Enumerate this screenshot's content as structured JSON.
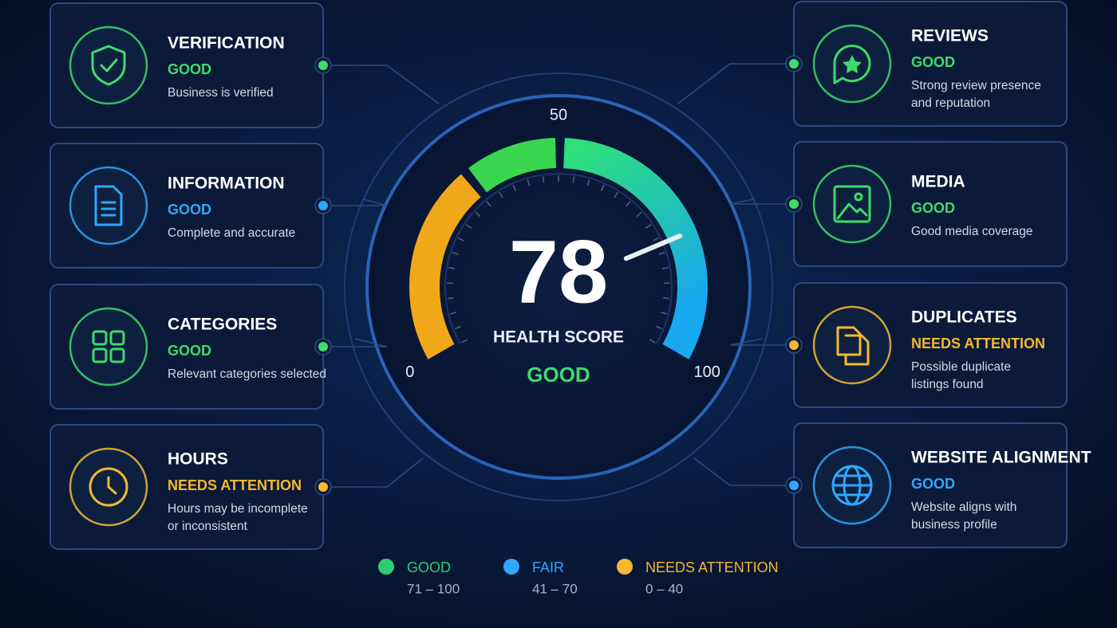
{
  "left_cards": [
    {
      "title": "VERIFICATION",
      "status": "GOOD",
      "color": "#3ddc6b",
      "description": [
        "Business is verified"
      ]
    },
    {
      "title": "INFORMATION",
      "status": "GOOD",
      "color": "#2ea8ff",
      "description": [
        "Complete and accurate"
      ]
    },
    {
      "title": "CATEGORIES",
      "status": "GOOD",
      "color": "#3ddc6b",
      "description": [
        "Relevant categories selected"
      ]
    },
    {
      "title": "HOURS",
      "status": "NEEDS ATTENTION",
      "color": "#f5b82e",
      "description": [
        "Hours may be incomplete",
        "or inconsistent"
      ]
    }
  ],
  "right_cards": [
    {
      "title": "REVIEWS",
      "status": "GOOD",
      "color": "#3ddc6b",
      "description": [
        "Strong review presence",
        "and reputation"
      ]
    },
    {
      "title": "MEDIA",
      "status": "GOOD",
      "color": "#3ddc6b",
      "description": [
        "Good media coverage"
      ]
    },
    {
      "title": "DUPLICATES",
      "status": "NEEDS ATTENTION",
      "color": "#f5b82e",
      "description": [
        "Possible duplicate",
        "listings found"
      ]
    },
    {
      "title": "WEBSITE ALIGNMENT",
      "status": "GOOD",
      "color": "#2ea8ff",
      "description": [
        "Website aligns with",
        "business profile"
      ]
    }
  ],
  "gauge": {
    "value": 78,
    "label": "HEALTH SCORE",
    "status": "GOOD",
    "status_color": "#3ddc6b",
    "scale": [
      0,
      50,
      100
    ]
  },
  "legend": [
    {
      "name": "GOOD",
      "range": "71 – 100",
      "color": "#2ecc71"
    },
    {
      "name": "FAIR",
      "range": "41 – 70",
      "color": "#2ea8ff"
    },
    {
      "name": "NEEDS ATTENTION",
      "range": "0 – 40",
      "color": "#f5b82e"
    }
  ]
}
